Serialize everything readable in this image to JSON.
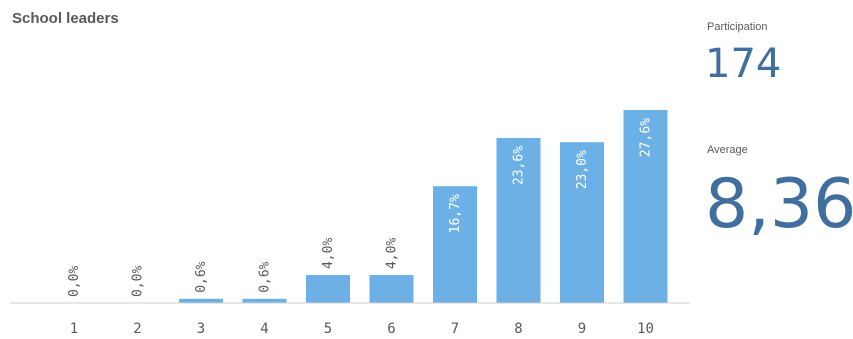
{
  "title": "School leaders",
  "kpis": {
    "participation_label": "Participation",
    "participation_value": "174",
    "average_label": "Average",
    "average_value": "8,36"
  },
  "colors": {
    "bar": "#6cb0e6",
    "value_label_outside": "#595959",
    "value_label_inside": "#ffffff",
    "kpi": "#3f6e9f"
  },
  "chart_data": {
    "type": "bar",
    "categories": [
      "1",
      "2",
      "3",
      "4",
      "5",
      "6",
      "7",
      "8",
      "9",
      "10"
    ],
    "values": [
      0.0,
      0.0,
      0.6,
      0.6,
      4.0,
      4.0,
      16.7,
      23.6,
      23.0,
      27.6
    ],
    "value_labels": [
      "0,0%",
      "0,0%",
      "0,6%",
      "0,6%",
      "4,0%",
      "4,0%",
      "16,7%",
      "23,6%",
      "23,0%",
      "27,6%"
    ],
    "title": "School leaders",
    "ylim": [
      0,
      27.6
    ],
    "grid": false
  }
}
